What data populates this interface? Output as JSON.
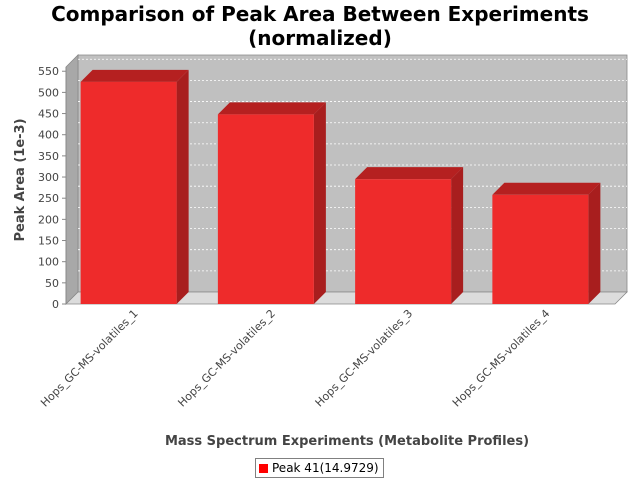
{
  "chart_data": {
    "type": "bar",
    "title": "Comparison of Peak Area Between Experiments",
    "subtitle": "(normalized)",
    "xlabel": "Mass Spectrum Experiments (Metabolite Profiles)",
    "ylabel": "Peak Area (1e-3)",
    "categories": [
      "Hops_GC-MS-volatiles_1",
      "Hops_GC-MS-volatiles_2",
      "Hops_GC-MS-volatiles_3",
      "Hops_GC-MS-volatiles_4"
    ],
    "series": [
      {
        "name": "Peak 41(14.9729)",
        "values": [
          525,
          448,
          295,
          258
        ]
      }
    ],
    "ylim": [
      0,
      560
    ],
    "yticks": [
      0,
      50,
      100,
      150,
      200,
      250,
      300,
      350,
      400,
      450,
      500,
      550
    ],
    "grid": true,
    "legend_position": "bottom",
    "style": "3d",
    "colors": {
      "bar": "#ee2b2b",
      "bar_top": "#b52020",
      "bar_side": "#a81e1e",
      "plot_bg": "#c0c0c0",
      "grid": "#ffffff"
    }
  }
}
